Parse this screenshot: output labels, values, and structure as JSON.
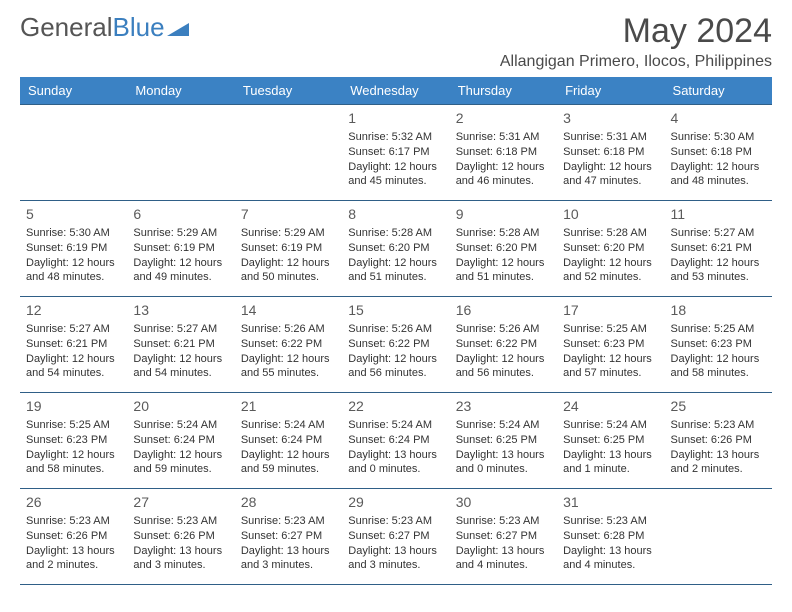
{
  "logo": {
    "text1": "General",
    "text2": "Blue"
  },
  "title": "May 2024",
  "location": "Allangigan Primero, Ilocos, Philippines",
  "colors": {
    "header_bg": "#3b82c4",
    "header_text": "#ffffff",
    "border": "#2f5f87",
    "text": "#333333",
    "logo_gray": "#555555",
    "logo_blue": "#3b7fbf"
  },
  "day_headers": [
    "Sunday",
    "Monday",
    "Tuesday",
    "Wednesday",
    "Thursday",
    "Friday",
    "Saturday"
  ],
  "weeks": [
    [
      null,
      null,
      null,
      {
        "n": "1",
        "sr": "Sunrise: 5:32 AM",
        "ss": "Sunset: 6:17 PM",
        "d1": "Daylight: 12 hours",
        "d2": "and 45 minutes."
      },
      {
        "n": "2",
        "sr": "Sunrise: 5:31 AM",
        "ss": "Sunset: 6:18 PM",
        "d1": "Daylight: 12 hours",
        "d2": "and 46 minutes."
      },
      {
        "n": "3",
        "sr": "Sunrise: 5:31 AM",
        "ss": "Sunset: 6:18 PM",
        "d1": "Daylight: 12 hours",
        "d2": "and 47 minutes."
      },
      {
        "n": "4",
        "sr": "Sunrise: 5:30 AM",
        "ss": "Sunset: 6:18 PM",
        "d1": "Daylight: 12 hours",
        "d2": "and 48 minutes."
      }
    ],
    [
      {
        "n": "5",
        "sr": "Sunrise: 5:30 AM",
        "ss": "Sunset: 6:19 PM",
        "d1": "Daylight: 12 hours",
        "d2": "and 48 minutes."
      },
      {
        "n": "6",
        "sr": "Sunrise: 5:29 AM",
        "ss": "Sunset: 6:19 PM",
        "d1": "Daylight: 12 hours",
        "d2": "and 49 minutes."
      },
      {
        "n": "7",
        "sr": "Sunrise: 5:29 AM",
        "ss": "Sunset: 6:19 PM",
        "d1": "Daylight: 12 hours",
        "d2": "and 50 minutes."
      },
      {
        "n": "8",
        "sr": "Sunrise: 5:28 AM",
        "ss": "Sunset: 6:20 PM",
        "d1": "Daylight: 12 hours",
        "d2": "and 51 minutes."
      },
      {
        "n": "9",
        "sr": "Sunrise: 5:28 AM",
        "ss": "Sunset: 6:20 PM",
        "d1": "Daylight: 12 hours",
        "d2": "and 51 minutes."
      },
      {
        "n": "10",
        "sr": "Sunrise: 5:28 AM",
        "ss": "Sunset: 6:20 PM",
        "d1": "Daylight: 12 hours",
        "d2": "and 52 minutes."
      },
      {
        "n": "11",
        "sr": "Sunrise: 5:27 AM",
        "ss": "Sunset: 6:21 PM",
        "d1": "Daylight: 12 hours",
        "d2": "and 53 minutes."
      }
    ],
    [
      {
        "n": "12",
        "sr": "Sunrise: 5:27 AM",
        "ss": "Sunset: 6:21 PM",
        "d1": "Daylight: 12 hours",
        "d2": "and 54 minutes."
      },
      {
        "n": "13",
        "sr": "Sunrise: 5:27 AM",
        "ss": "Sunset: 6:21 PM",
        "d1": "Daylight: 12 hours",
        "d2": "and 54 minutes."
      },
      {
        "n": "14",
        "sr": "Sunrise: 5:26 AM",
        "ss": "Sunset: 6:22 PM",
        "d1": "Daylight: 12 hours",
        "d2": "and 55 minutes."
      },
      {
        "n": "15",
        "sr": "Sunrise: 5:26 AM",
        "ss": "Sunset: 6:22 PM",
        "d1": "Daylight: 12 hours",
        "d2": "and 56 minutes."
      },
      {
        "n": "16",
        "sr": "Sunrise: 5:26 AM",
        "ss": "Sunset: 6:22 PM",
        "d1": "Daylight: 12 hours",
        "d2": "and 56 minutes."
      },
      {
        "n": "17",
        "sr": "Sunrise: 5:25 AM",
        "ss": "Sunset: 6:23 PM",
        "d1": "Daylight: 12 hours",
        "d2": "and 57 minutes."
      },
      {
        "n": "18",
        "sr": "Sunrise: 5:25 AM",
        "ss": "Sunset: 6:23 PM",
        "d1": "Daylight: 12 hours",
        "d2": "and 58 minutes."
      }
    ],
    [
      {
        "n": "19",
        "sr": "Sunrise: 5:25 AM",
        "ss": "Sunset: 6:23 PM",
        "d1": "Daylight: 12 hours",
        "d2": "and 58 minutes."
      },
      {
        "n": "20",
        "sr": "Sunrise: 5:24 AM",
        "ss": "Sunset: 6:24 PM",
        "d1": "Daylight: 12 hours",
        "d2": "and 59 minutes."
      },
      {
        "n": "21",
        "sr": "Sunrise: 5:24 AM",
        "ss": "Sunset: 6:24 PM",
        "d1": "Daylight: 12 hours",
        "d2": "and 59 minutes."
      },
      {
        "n": "22",
        "sr": "Sunrise: 5:24 AM",
        "ss": "Sunset: 6:24 PM",
        "d1": "Daylight: 13 hours",
        "d2": "and 0 minutes."
      },
      {
        "n": "23",
        "sr": "Sunrise: 5:24 AM",
        "ss": "Sunset: 6:25 PM",
        "d1": "Daylight: 13 hours",
        "d2": "and 0 minutes."
      },
      {
        "n": "24",
        "sr": "Sunrise: 5:24 AM",
        "ss": "Sunset: 6:25 PM",
        "d1": "Daylight: 13 hours",
        "d2": "and 1 minute."
      },
      {
        "n": "25",
        "sr": "Sunrise: 5:23 AM",
        "ss": "Sunset: 6:26 PM",
        "d1": "Daylight: 13 hours",
        "d2": "and 2 minutes."
      }
    ],
    [
      {
        "n": "26",
        "sr": "Sunrise: 5:23 AM",
        "ss": "Sunset: 6:26 PM",
        "d1": "Daylight: 13 hours",
        "d2": "and 2 minutes."
      },
      {
        "n": "27",
        "sr": "Sunrise: 5:23 AM",
        "ss": "Sunset: 6:26 PM",
        "d1": "Daylight: 13 hours",
        "d2": "and 3 minutes."
      },
      {
        "n": "28",
        "sr": "Sunrise: 5:23 AM",
        "ss": "Sunset: 6:27 PM",
        "d1": "Daylight: 13 hours",
        "d2": "and 3 minutes."
      },
      {
        "n": "29",
        "sr": "Sunrise: 5:23 AM",
        "ss": "Sunset: 6:27 PM",
        "d1": "Daylight: 13 hours",
        "d2": "and 3 minutes."
      },
      {
        "n": "30",
        "sr": "Sunrise: 5:23 AM",
        "ss": "Sunset: 6:27 PM",
        "d1": "Daylight: 13 hours",
        "d2": "and 4 minutes."
      },
      {
        "n": "31",
        "sr": "Sunrise: 5:23 AM",
        "ss": "Sunset: 6:28 PM",
        "d1": "Daylight: 13 hours",
        "d2": "and 4 minutes."
      },
      null
    ]
  ]
}
